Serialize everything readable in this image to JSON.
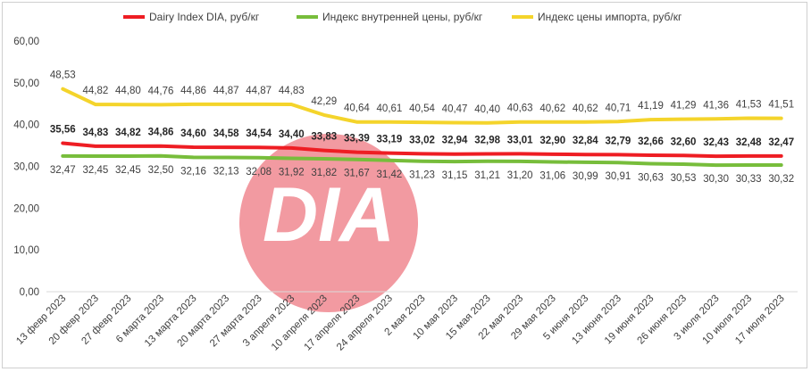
{
  "colors": {
    "dairy": "#ee1d23",
    "domestic": "#77bd3b",
    "import": "#f4d42b",
    "watermark": "#f08a92"
  },
  "watermark": {
    "text": "DIA"
  },
  "chart_data": {
    "type": "line",
    "ylim": [
      0,
      60
    ],
    "yticks": [
      "0,00",
      "10,00",
      "20,00",
      "30,00",
      "40,00",
      "50,00",
      "60,00"
    ],
    "yticks_values": [
      0,
      10,
      20,
      30,
      40,
      50,
      60
    ],
    "categories": [
      "13 февр 2023",
      "20 февр 2023",
      "27 февр 2023",
      "6 марта 2023",
      "13 марта 2023",
      "20 марта 2023",
      "27 марта 2023",
      "3 апреля 2023",
      "10 апреля 2023",
      "17 апреля 2023",
      "24 апреля 2023",
      "2 мая 2023",
      "10 мая 2023",
      "15 мая 2023",
      "22 мая 2023",
      "29 мая 2023",
      "5 июня 2023",
      "13 июня 2023",
      "19 июня 2023",
      "26 июня 2023",
      "3 июля 2023",
      "10 июля 2023",
      "17 июля 2023"
    ],
    "legend_position": "top",
    "grid": false,
    "series": [
      {
        "name": "Dairy Index DIA,  руб/кг",
        "key": "dairy",
        "labels": [
          "35,56",
          "34,83",
          "34,82",
          "34,86",
          "34,60",
          "34,58",
          "34,54",
          "34,40",
          "33,83",
          "33,39",
          "33,19",
          "33,02",
          "32,94",
          "32,98",
          "33,01",
          "32,90",
          "32,84",
          "32,79",
          "32,66",
          "32,60",
          "32,43",
          "32,48",
          "32,47"
        ],
        "values": [
          35.56,
          34.83,
          34.82,
          34.86,
          34.6,
          34.58,
          34.54,
          34.4,
          33.83,
          33.39,
          33.19,
          33.02,
          32.94,
          32.98,
          33.01,
          32.9,
          32.84,
          32.79,
          32.66,
          32.6,
          32.43,
          32.48,
          32.47
        ]
      },
      {
        "name": "Индекс внутренней цены, руб/кг",
        "key": "domestic",
        "labels": [
          "32,47",
          "32,45",
          "32,45",
          "32,50",
          "32,16",
          "32,13",
          "32,08",
          "31,92",
          "31,82",
          "31,67",
          "31,42",
          "31,23",
          "31,15",
          "31,21",
          "31,20",
          "31,06",
          "30,99",
          "30,91",
          "30,63",
          "30,53",
          "30,30",
          "30,33",
          "30,32"
        ],
        "values": [
          32.47,
          32.45,
          32.45,
          32.5,
          32.16,
          32.13,
          32.08,
          31.92,
          31.82,
          31.67,
          31.42,
          31.23,
          31.15,
          31.21,
          31.2,
          31.06,
          30.99,
          30.91,
          30.63,
          30.53,
          30.3,
          30.33,
          30.32
        ]
      },
      {
        "name": "Индекс цены импорта, руб/кг",
        "key": "import",
        "labels": [
          "48,53",
          "44,82",
          "44,80",
          "44,76",
          "44,86",
          "44,87",
          "44,87",
          "44,83",
          "42,29",
          "40,64",
          "40,61",
          "40,54",
          "40,47",
          "40,40",
          "40,63",
          "40,62",
          "40,62",
          "40,71",
          "41,19",
          "41,29",
          "41,36",
          "41,53",
          "41,51"
        ],
        "values": [
          48.53,
          44.82,
          44.8,
          44.76,
          44.86,
          44.87,
          44.87,
          44.83,
          42.29,
          40.64,
          40.61,
          40.54,
          40.47,
          40.4,
          40.63,
          40.62,
          40.62,
          40.71,
          41.19,
          41.29,
          41.36,
          41.53,
          41.51
        ]
      }
    ]
  }
}
